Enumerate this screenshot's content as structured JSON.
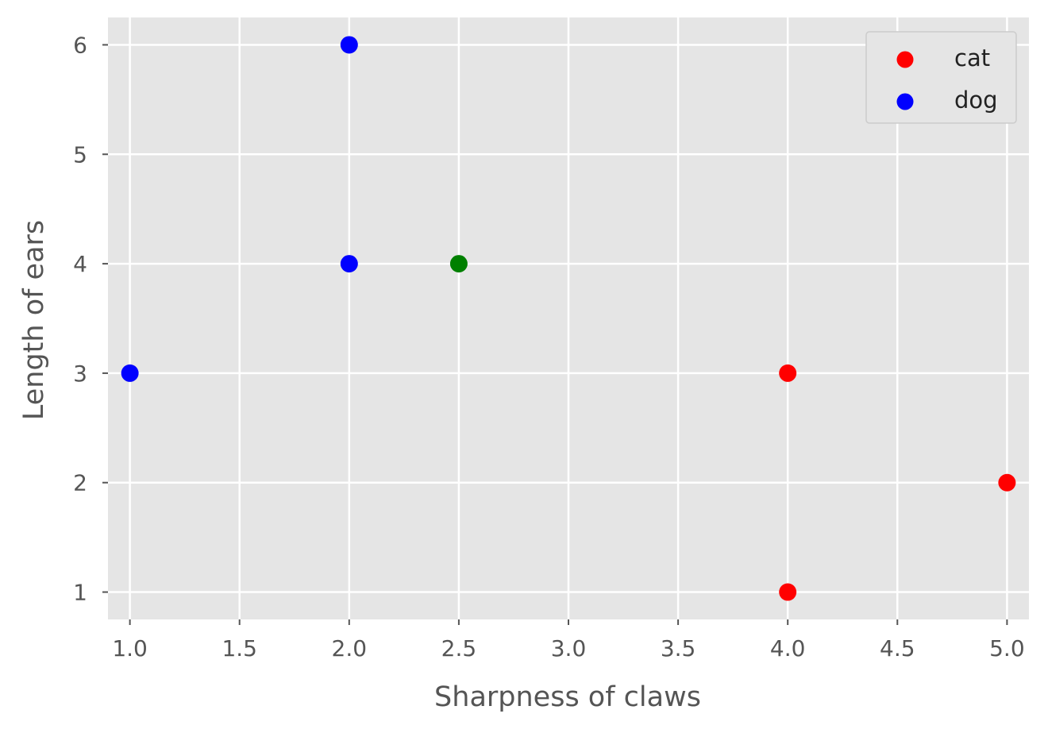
{
  "chart_data": {
    "type": "scatter",
    "title": "",
    "xlabel": "Sharpness of claws",
    "ylabel": "Length of ears",
    "xlim": [
      0.9,
      5.1
    ],
    "ylim": [
      0.75,
      6.25
    ],
    "xticks": [
      "1.0",
      "1.5",
      "2.0",
      "2.5",
      "3.0",
      "3.5",
      "4.0",
      "4.5",
      "5.0"
    ],
    "yticks": [
      "1",
      "2",
      "3",
      "4",
      "5",
      "6"
    ],
    "grid": true,
    "legend_position": "top-right",
    "series": [
      {
        "name": "cat",
        "color": "#ff0000",
        "points": [
          [
            4,
            3
          ],
          [
            5,
            2
          ],
          [
            4,
            1
          ]
        ]
      },
      {
        "name": "dog",
        "color": "#0000ff",
        "points": [
          [
            2,
            6
          ],
          [
            2,
            4
          ],
          [
            1,
            3
          ]
        ]
      },
      {
        "name": "",
        "color": "#008000",
        "legend": false,
        "points": [
          [
            2.5,
            4
          ]
        ]
      }
    ]
  },
  "colors": {
    "axes_background": "#e5e5e5",
    "grid": "#ffffff",
    "text": "#555555"
  }
}
